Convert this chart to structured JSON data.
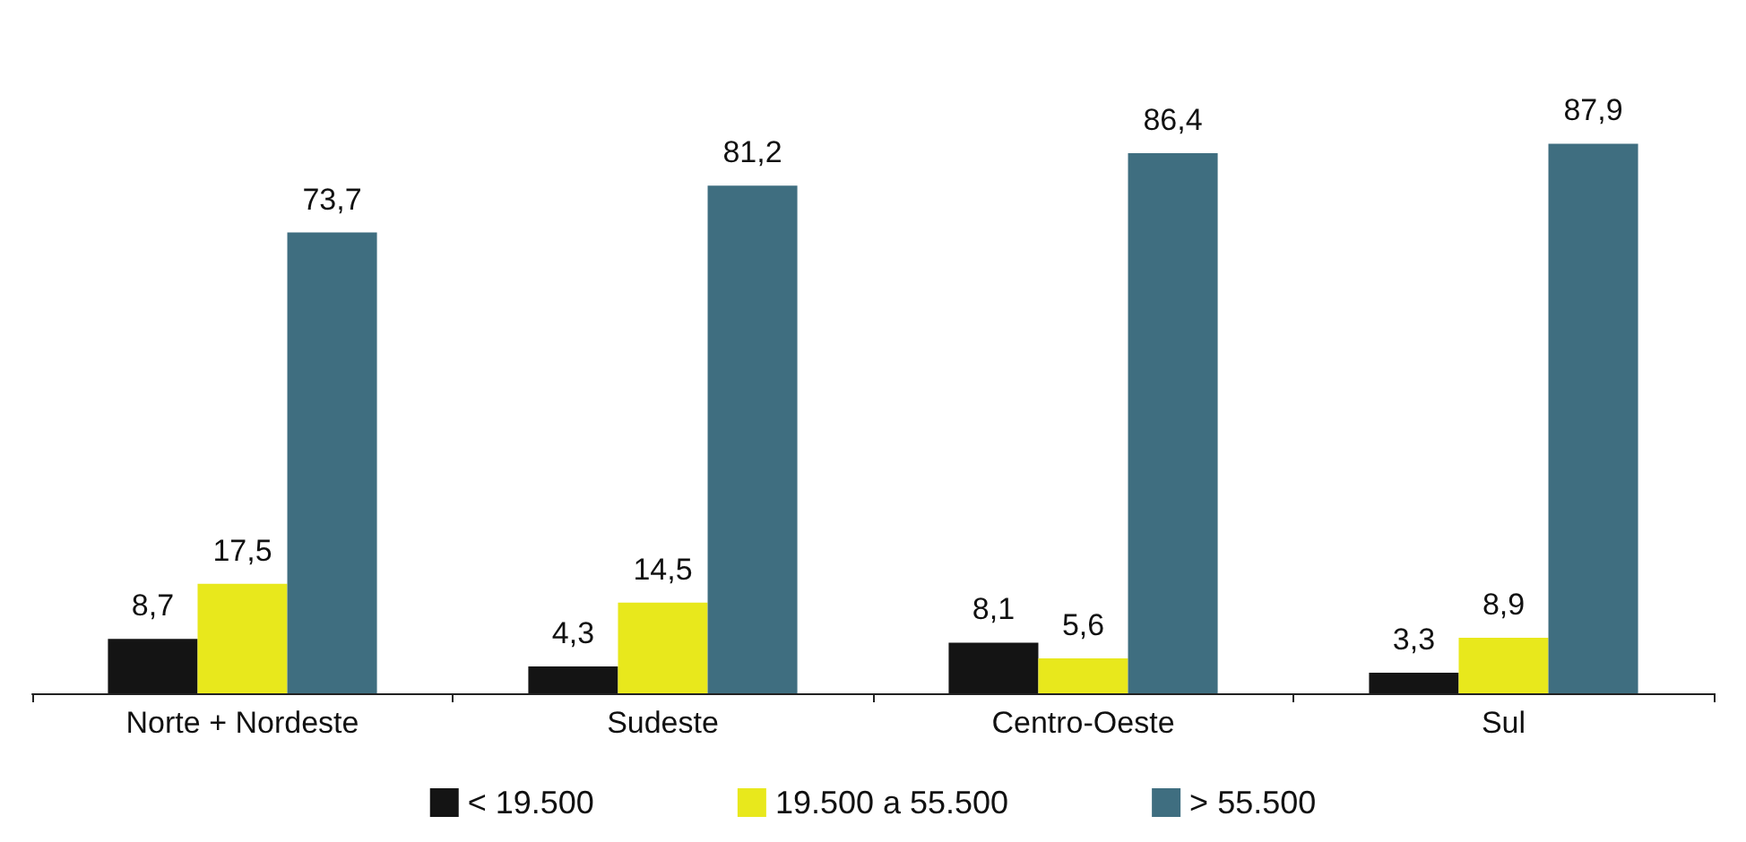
{
  "chart_data": {
    "type": "bar",
    "categories": [
      "Norte + Nordeste",
      "Sudeste",
      "Centro-Oeste",
      "Sul"
    ],
    "series": [
      {
        "name": "< 19.500",
        "color": "#141414",
        "values": [
          8.7,
          4.3,
          8.1,
          3.3
        ],
        "value_labels": [
          "8,7",
          "4,3",
          "8,1",
          "3,3"
        ]
      },
      {
        "name": "19.500 a 55.500",
        "color": "#e8e81c",
        "values": [
          17.5,
          14.5,
          5.6,
          8.9
        ],
        "value_labels": [
          "17,5",
          "14,5",
          "5,6",
          "8,9"
        ]
      },
      {
        "name": "> 55.500",
        "color": "#3f6e80",
        "values": [
          73.7,
          81.2,
          86.4,
          87.9
        ],
        "value_labels": [
          "73,7",
          "81,2",
          "86,4",
          "87,9"
        ]
      }
    ],
    "legend": "bottom"
  }
}
